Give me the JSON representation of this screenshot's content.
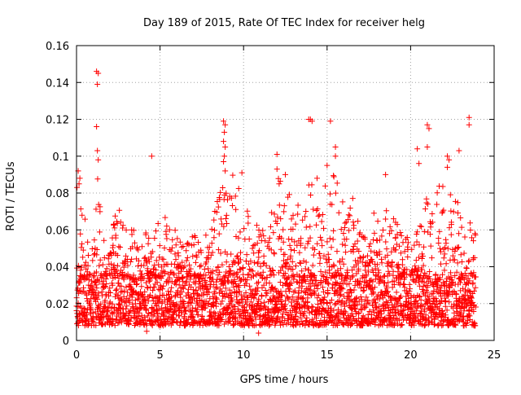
{
  "colors": {
    "series": "#ff0000",
    "axis": "#000000",
    "grid": "#a0a0a0",
    "background": "#ffffff"
  },
  "chart_data": {
    "type": "scatter",
    "title": "Day 189 of 2015, Rate Of TEC Index for receiver helg",
    "xlabel": "GPS time / hours",
    "ylabel": "ROTI / TECUs",
    "xlim": [
      0,
      25
    ],
    "ylim": [
      0,
      0.16
    ],
    "x_ticks": [
      0,
      5,
      10,
      15,
      20,
      25
    ],
    "x_tick_labels": [
      "0",
      "5",
      "10",
      "15",
      "20",
      "25"
    ],
    "y_ticks": [
      0,
      0.02,
      0.04,
      0.06,
      0.08,
      0.1,
      0.12,
      0.14,
      0.16
    ],
    "y_tick_labels": [
      "0",
      "0.02",
      "0.04",
      "0.06",
      "0.08",
      "0.1",
      "0.12",
      "0.14",
      "0.16"
    ],
    "grid": true,
    "marker": "+",
    "series": [
      {
        "name": "ROTI",
        "x_range": [
          0,
          23.9
        ],
        "typical_range": [
          0.008,
          0.035
        ],
        "envelope": {
          "x": [
            0,
            0.3,
            0.6,
            1.0,
            1.3,
            1.6,
            2.0,
            2.5,
            3.0,
            3.5,
            4.0,
            4.5,
            5.0,
            5.5,
            6.0,
            6.5,
            7.0,
            7.5,
            8.0,
            8.5,
            9.0,
            9.5,
            10.0,
            10.5,
            11.0,
            11.5,
            12.0,
            12.5,
            13.0,
            13.5,
            14.0,
            14.5,
            15.0,
            15.5,
            16.0,
            16.5,
            17.0,
            17.5,
            18.0,
            18.5,
            19.0,
            19.5,
            20.0,
            20.5,
            21.0,
            21.5,
            22.0,
            22.5,
            23.0,
            23.5,
            23.9
          ],
          "max": [
            0.09,
            0.085,
            0.06,
            0.055,
            0.095,
            0.055,
            0.05,
            0.08,
            0.06,
            0.07,
            0.06,
            0.055,
            0.07,
            0.065,
            0.06,
            0.06,
            0.06,
            0.055,
            0.06,
            0.08,
            0.095,
            0.09,
            0.075,
            0.07,
            0.06,
            0.06,
            0.09,
            0.085,
            0.08,
            0.07,
            0.09,
            0.07,
            0.09,
            0.09,
            0.08,
            0.08,
            0.06,
            0.06,
            0.08,
            0.085,
            0.07,
            0.06,
            0.055,
            0.06,
            0.09,
            0.09,
            0.095,
            0.085,
            0.07,
            0.065,
            0.06
          ]
        },
        "outliers": [
          {
            "x": 1.2,
            "y": 0.146
          },
          {
            "x": 1.3,
            "y": 0.145
          },
          {
            "x": 1.25,
            "y": 0.139
          },
          {
            "x": 1.2,
            "y": 0.116
          },
          {
            "x": 1.25,
            "y": 0.103
          },
          {
            "x": 1.3,
            "y": 0.098
          },
          {
            "x": 0.1,
            "y": 0.092
          },
          {
            "x": 0.2,
            "y": 0.088
          },
          {
            "x": 0.15,
            "y": 0.085
          },
          {
            "x": 4.5,
            "y": 0.1
          },
          {
            "x": 8.8,
            "y": 0.119
          },
          {
            "x": 8.9,
            "y": 0.117
          },
          {
            "x": 8.85,
            "y": 0.113
          },
          {
            "x": 8.8,
            "y": 0.108
          },
          {
            "x": 8.9,
            "y": 0.105
          },
          {
            "x": 8.85,
            "y": 0.1
          },
          {
            "x": 8.8,
            "y": 0.097
          },
          {
            "x": 8.9,
            "y": 0.092
          },
          {
            "x": 9.9,
            "y": 0.091
          },
          {
            "x": 12.0,
            "y": 0.101
          },
          {
            "x": 12.0,
            "y": 0.093
          },
          {
            "x": 12.5,
            "y": 0.09
          },
          {
            "x": 14.0,
            "y": 0.12
          },
          {
            "x": 14.1,
            "y": 0.119
          },
          {
            "x": 13.9,
            "y": 0.12
          },
          {
            "x": 14.4,
            "y": 0.088
          },
          {
            "x": 15.2,
            "y": 0.119
          },
          {
            "x": 15.5,
            "y": 0.105
          },
          {
            "x": 15.5,
            "y": 0.1
          },
          {
            "x": 15.0,
            "y": 0.095
          },
          {
            "x": 18.5,
            "y": 0.09
          },
          {
            "x": 20.4,
            "y": 0.104
          },
          {
            "x": 20.5,
            "y": 0.096
          },
          {
            "x": 21.0,
            "y": 0.117
          },
          {
            "x": 21.1,
            "y": 0.115
          },
          {
            "x": 21.0,
            "y": 0.105
          },
          {
            "x": 22.2,
            "y": 0.1
          },
          {
            "x": 22.3,
            "y": 0.098
          },
          {
            "x": 22.2,
            "y": 0.094
          },
          {
            "x": 22.9,
            "y": 0.103
          },
          {
            "x": 23.5,
            "y": 0.121
          },
          {
            "x": 23.5,
            "y": 0.117
          },
          {
            "x": 10.9,
            "y": 0.004
          },
          {
            "x": 4.2,
            "y": 0.005
          }
        ]
      }
    ]
  }
}
